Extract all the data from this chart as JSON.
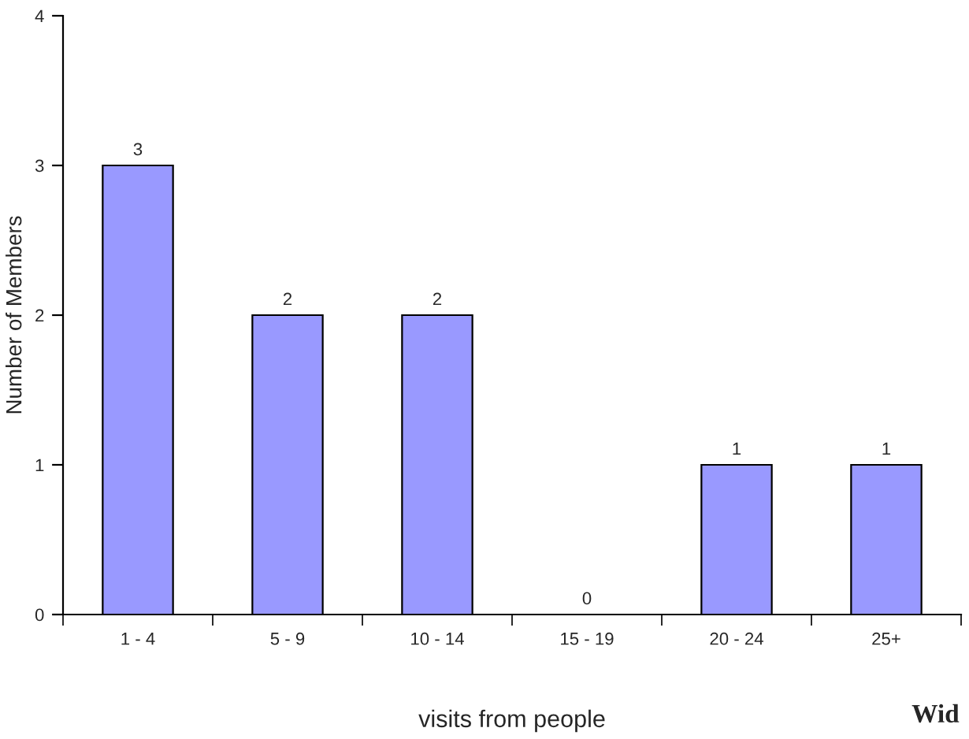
{
  "chart_data": {
    "type": "bar",
    "categories": [
      "1 - 4",
      "5 - 9",
      "10 - 14",
      "15 - 19",
      "20 - 24",
      "25+"
    ],
    "values": [
      3,
      2,
      2,
      0,
      1,
      1
    ],
    "color": "#9999ff",
    "xlabel": "visits from people",
    "ylabel": "Number of Members",
    "ylim": [
      0,
      4
    ],
    "yticks": [
      0,
      1,
      2,
      3,
      4
    ],
    "data_labels": true,
    "grid": false,
    "legend": false,
    "annotations": [
      "Wid"
    ]
  }
}
